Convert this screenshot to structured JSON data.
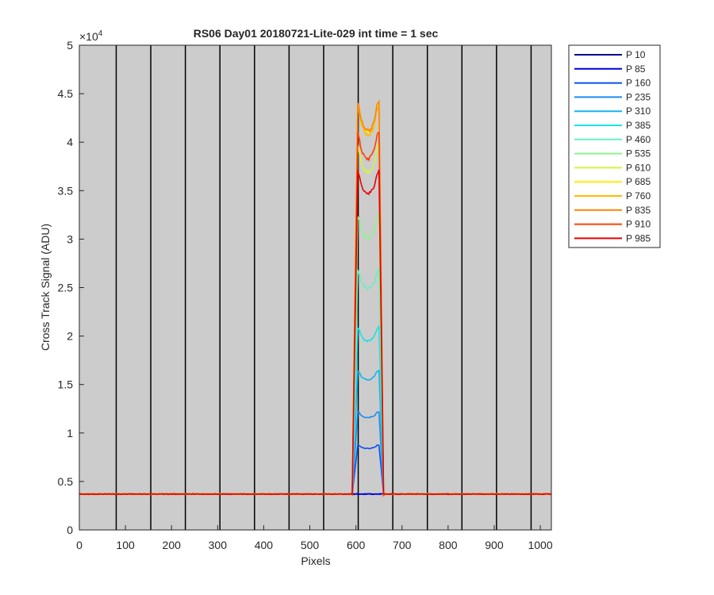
{
  "chart_data": {
    "type": "line",
    "title": "RS06 Day01 20180721-Lite-029 int time = 1 sec",
    "xlabel": "Pixels",
    "ylabel": "Cross Track Signal (ADU)",
    "y_exponent_label": "×10",
    "y_exponent_power": "4",
    "xlim": [
      0,
      1024
    ],
    "ylim": [
      0,
      50000
    ],
    "x_ticks": [
      0,
      100,
      200,
      300,
      400,
      500,
      600,
      700,
      800,
      900,
      1000
    ],
    "y_ticks": [
      0,
      5000,
      10000,
      15000,
      20000,
      25000,
      30000,
      35000,
      40000,
      45000,
      50000
    ],
    "y_tick_labels": [
      "0",
      "0.5",
      "1",
      "1.5",
      "2",
      "2.5",
      "3",
      "3.5",
      "4",
      "4.5",
      "5"
    ],
    "x_tick_labels": [
      "0",
      "100",
      "200",
      "300",
      "400",
      "500",
      "600",
      "700",
      "800",
      "900",
      "1000"
    ],
    "background_color": "#cccccc",
    "grid": false,
    "vertical_lines_x": [
      80,
      155,
      230,
      305,
      380,
      455,
      530,
      605,
      680,
      755,
      830,
      905,
      980
    ],
    "legend_position": "outside-top-right",
    "baseline_value": 3700,
    "series": [
      {
        "name": "P 10",
        "color": "#00008f",
        "plateau": 3700,
        "dip": 0
      },
      {
        "name": "P 85",
        "color": "#0000e0",
        "plateau": 3700,
        "dip": 0
      },
      {
        "name": "P 160",
        "color": "#0a4ff2",
        "plateau": 8900,
        "dip": 500
      },
      {
        "name": "P 235",
        "color": "#1a8cf0",
        "plateau": 12500,
        "dip": 900
      },
      {
        "name": "P 310",
        "color": "#14b4ee",
        "plateau": 17000,
        "dip": 1500
      },
      {
        "name": "P 385",
        "color": "#19e3e3",
        "plateau": 21800,
        "dip": 2300
      },
      {
        "name": "P 460",
        "color": "#63f2c2",
        "plateau": 28200,
        "dip": 3300
      },
      {
        "name": "P 535",
        "color": "#8cf58c",
        "plateau": 34200,
        "dip": 4100
      },
      {
        "name": "P 610",
        "color": "#d6f240",
        "plateau": 41500,
        "dip": 4600
      },
      {
        "name": "P 685",
        "color": "#ffee00",
        "plateau": 45800,
        "dip": 4800
      },
      {
        "name": "P 760",
        "color": "#ffba00",
        "plateau": 45500,
        "dip": 4700
      },
      {
        "name": "P 835",
        "color": "#ff8200",
        "plateau": 46000,
        "dip": 4800
      },
      {
        "name": "P 910",
        "color": "#ff4200",
        "plateau": 42800,
        "dip": 4500
      },
      {
        "name": "P 985",
        "color": "#e80000",
        "plateau": 38500,
        "dip": 3800
      }
    ]
  }
}
